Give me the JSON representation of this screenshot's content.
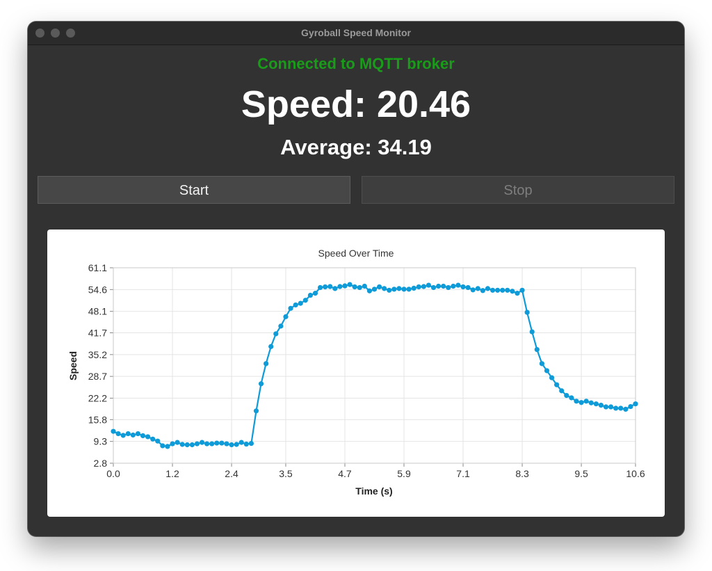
{
  "window": {
    "title": "Gyroball Speed Monitor"
  },
  "status": {
    "text": "Connected to MQTT broker",
    "color": "#1a9c1a"
  },
  "readouts": {
    "speed_text": "Speed: 20.46",
    "average_text": "Average: 34.19"
  },
  "controls": {
    "start_label": "Start",
    "stop_label": "Stop",
    "stop_enabled": false
  },
  "chart_data": {
    "type": "line",
    "title": "Speed Over Time",
    "xlabel": "Time (s)",
    "ylabel": "Speed",
    "xlim": [
      0.0,
      10.6
    ],
    "ylim": [
      2.8,
      61.1
    ],
    "xticks": [
      "0.0",
      "1.2",
      "2.4",
      "3.5",
      "4.7",
      "5.9",
      "7.1",
      "8.3",
      "9.5",
      "10.6"
    ],
    "yticks": [
      "2.8",
      "9.3",
      "15.8",
      "22.2",
      "28.7",
      "35.2",
      "41.7",
      "48.1",
      "54.6",
      "61.1"
    ],
    "grid": true,
    "line_color": "#0e9bd8",
    "series": [
      {
        "x": [
          0.0,
          0.1,
          0.2,
          0.3,
          0.4,
          0.5,
          0.6,
          0.7,
          0.8,
          0.9,
          1.0,
          1.1,
          1.2,
          1.3,
          1.4,
          1.5,
          1.6,
          1.7,
          1.8,
          1.9,
          2.0,
          2.1,
          2.2,
          2.3,
          2.4,
          2.5,
          2.6,
          2.7,
          2.8,
          2.9,
          3.0,
          3.1,
          3.2,
          3.3,
          3.4,
          3.5,
          3.6,
          3.7,
          3.8,
          3.9,
          4.0,
          4.1,
          4.2,
          4.3,
          4.4,
          4.5,
          4.6,
          4.7,
          4.8,
          4.9,
          5.0,
          5.1,
          5.2,
          5.3,
          5.4,
          5.5,
          5.6,
          5.7,
          5.8,
          5.9,
          6.0,
          6.1,
          6.2,
          6.3,
          6.4,
          6.5,
          6.6,
          6.7,
          6.8,
          6.9,
          7.0,
          7.1,
          7.2,
          7.3,
          7.4,
          7.5,
          7.6,
          7.7,
          7.8,
          7.9,
          8.0,
          8.1,
          8.2,
          8.3,
          8.4,
          8.5,
          8.6,
          8.7,
          8.8,
          8.9,
          9.0,
          9.1,
          9.2,
          9.3,
          9.4,
          9.5,
          9.6,
          9.7,
          9.8,
          9.9,
          10.0,
          10.1,
          10.2,
          10.3,
          10.4,
          10.5,
          10.6
        ],
        "y": [
          12.3,
          11.6,
          11.1,
          11.6,
          11.2,
          11.6,
          11.0,
          10.7,
          10.0,
          9.4,
          8.0,
          7.8,
          8.6,
          9.0,
          8.4,
          8.3,
          8.3,
          8.6,
          9.0,
          8.6,
          8.6,
          8.8,
          8.8,
          8.6,
          8.3,
          8.4,
          9.0,
          8.5,
          8.7,
          18.4,
          26.5,
          32.5,
          37.6,
          41.4,
          43.7,
          46.5,
          49.0,
          50.0,
          50.5,
          51.4,
          52.9,
          53.5,
          55.2,
          55.4,
          55.5,
          54.9,
          55.5,
          55.7,
          56.1,
          55.4,
          55.2,
          55.6,
          54.2,
          54.7,
          55.4,
          54.9,
          54.4,
          54.7,
          54.9,
          54.7,
          54.7,
          55.0,
          55.4,
          55.5,
          55.9,
          55.2,
          55.6,
          55.6,
          55.2,
          55.6,
          55.9,
          55.4,
          55.2,
          54.5,
          54.9,
          54.3,
          54.9,
          54.4,
          54.4,
          54.4,
          54.4,
          54.1,
          53.5,
          54.4,
          47.8,
          42.0,
          36.7,
          32.5,
          30.4,
          28.3,
          26.2,
          24.4,
          23.0,
          22.3,
          21.3,
          20.9,
          21.3,
          20.8,
          20.5,
          20.1,
          19.6,
          19.6,
          19.2,
          19.2,
          18.9,
          19.7,
          20.5
        ]
      }
    ]
  }
}
